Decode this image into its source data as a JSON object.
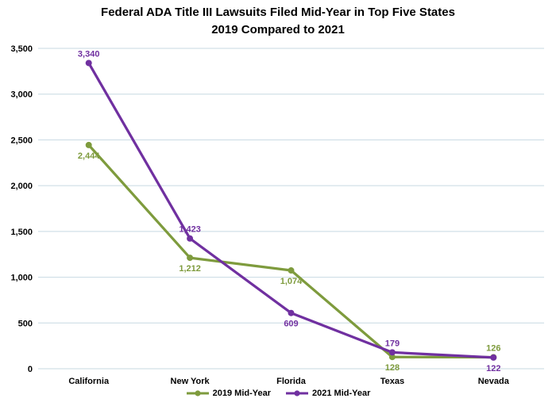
{
  "title": {
    "line1": "Federal ADA Title III Lawsuits Filed Mid-Year in Top Five States",
    "line2": "2019 Compared to 2021"
  },
  "chart_data": {
    "type": "line",
    "categories": [
      "California",
      "New York",
      "Florida",
      "Texas",
      "Nevada"
    ],
    "series": [
      {
        "name": "2019 Mid-Year",
        "color": "#7E9B3D",
        "values": [
          2444,
          1212,
          1074,
          128,
          126
        ],
        "labels": [
          "2,444",
          "1,212",
          "1,074",
          "128",
          "126"
        ],
        "label_positions": [
          "below",
          "below",
          "below",
          "below",
          "above"
        ]
      },
      {
        "name": "2021 Mid-Year",
        "color": "#7030A0",
        "values": [
          3340,
          1423,
          609,
          179,
          122
        ],
        "labels": [
          "3,340",
          "1,423",
          "609",
          "179",
          "122"
        ],
        "label_positions": [
          "above",
          "above",
          "below",
          "above",
          "below"
        ]
      }
    ],
    "ylim": [
      0,
      3500
    ],
    "ytick_values": [
      0,
      500,
      1000,
      1500,
      2000,
      2500,
      3000,
      3500
    ],
    "ytick_labels": [
      "0",
      "500",
      "1,000",
      "1,500",
      "2,000",
      "2,500",
      "3,000",
      "3,500"
    ],
    "grid": true,
    "gridline_color": "#C7D9E2",
    "legend_position": "bottom"
  }
}
